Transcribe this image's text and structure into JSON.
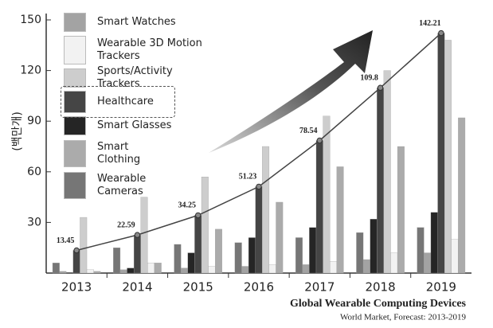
{
  "chart_data": {
    "type": "bar",
    "y_label": "(백만개)",
    "title": "Global Wearable Computing Devices",
    "subtitle": "World Market, Forecast: 2013-2019",
    "categories": [
      "2013",
      "2014",
      "2015",
      "2016",
      "2017",
      "2018",
      "2019"
    ],
    "ylim": [
      0,
      150
    ],
    "yticks": [
      30,
      60,
      90,
      120,
      150
    ],
    "series": [
      {
        "name": "Smart Watches",
        "color": "#a3a3a3",
        "values": [
          1,
          2,
          3,
          4,
          5,
          8,
          12
        ]
      },
      {
        "name": "Wearable 3D Motion Trackers",
        "color": "#f2f2f2",
        "values": [
          2,
          6,
          4,
          5,
          7,
          12,
          20
        ]
      },
      {
        "name": "Sports/Activity Trackers",
        "color": "#cdcdcd",
        "values": [
          33,
          45,
          57,
          75,
          93,
          120,
          138
        ]
      },
      {
        "name": "Healthcare",
        "color": "#454545",
        "values": [
          13.45,
          22.59,
          34.25,
          51.23,
          78.54,
          109.8,
          142.21
        ]
      },
      {
        "name": "Smart Glasses",
        "color": "#252525",
        "values": [
          0,
          3,
          12,
          21,
          27,
          32,
          36
        ]
      },
      {
        "name": "Smart Clothing",
        "color": "#ababab",
        "values": [
          1,
          6,
          26,
          42,
          63,
          75,
          92
        ]
      },
      {
        "name": "Wearable Cameras",
        "color": "#767676",
        "values": [
          6,
          15,
          17,
          18,
          21,
          24,
          27
        ]
      }
    ],
    "bar_order": [
      6,
      0,
      4,
      3,
      2,
      1,
      5
    ],
    "line_series": 3
  }
}
